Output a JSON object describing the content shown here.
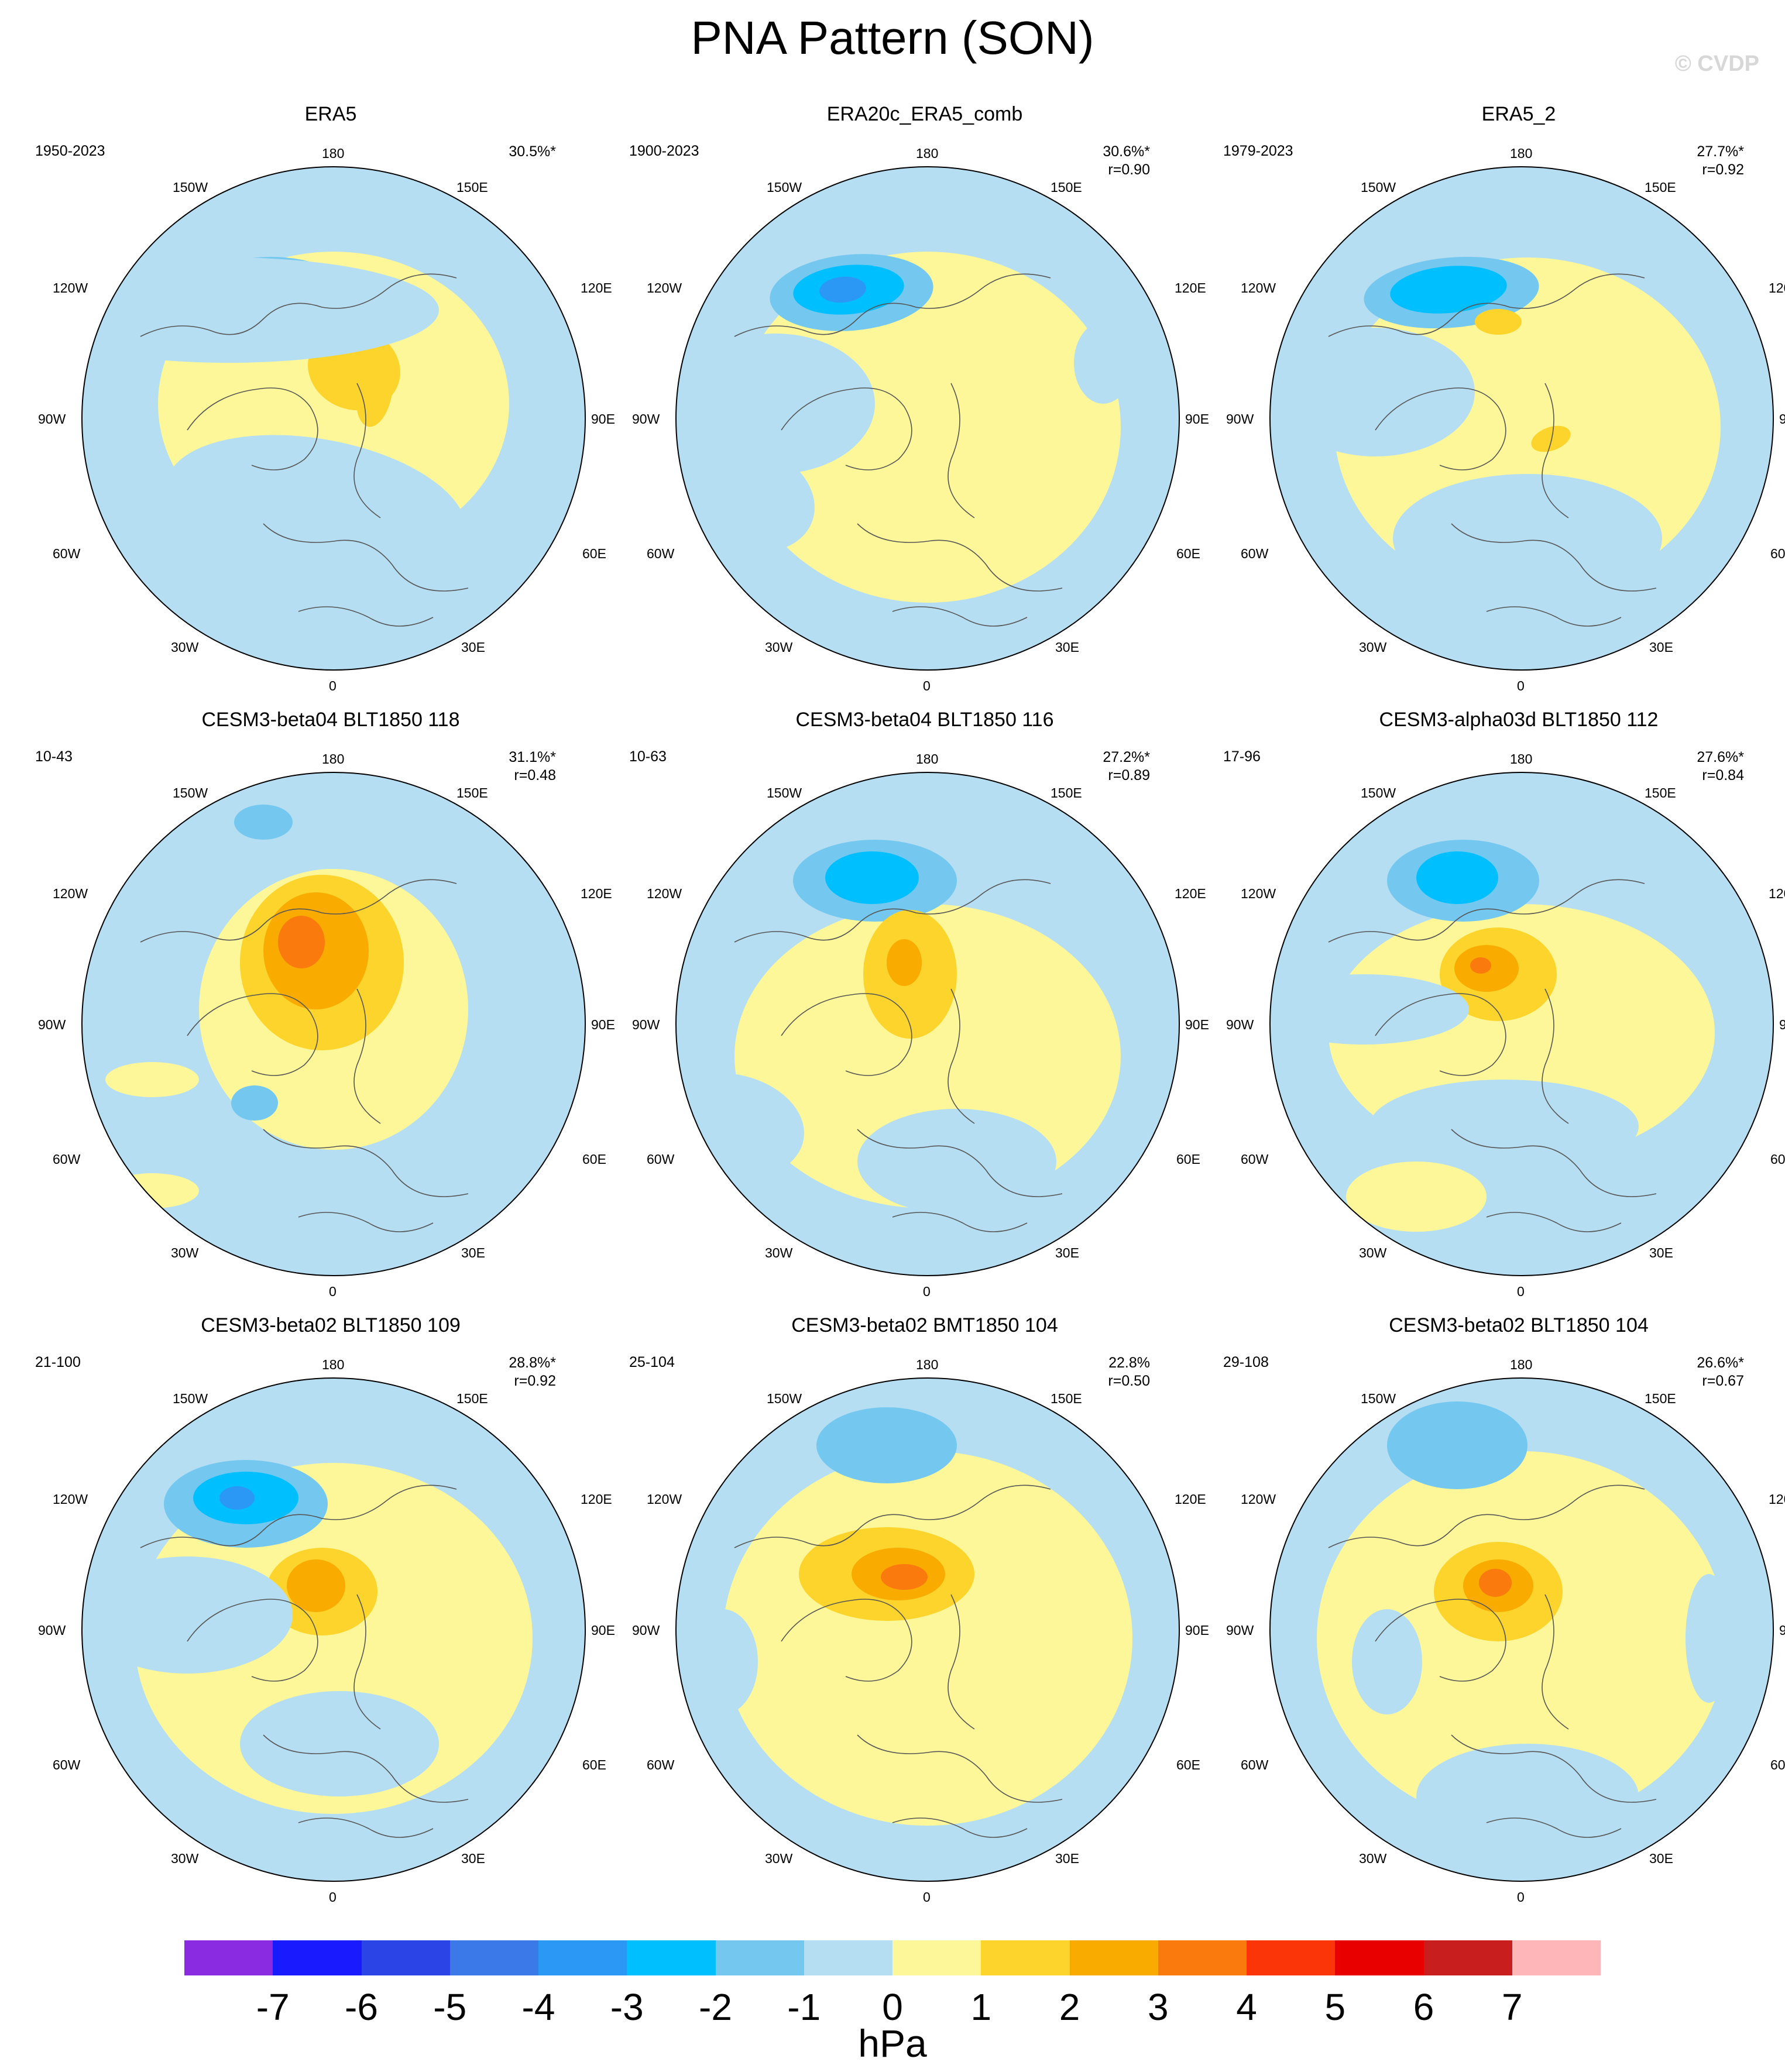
{
  "title": "PNA Pattern (SON)",
  "watermark": "© CVDP",
  "lon_labels": {
    "top": "180",
    "bottom": "0",
    "upper_left": "150W",
    "upper_right": "150E",
    "left_upper": "120W",
    "right_upper": "120E",
    "left": "90W",
    "right": "90E",
    "left_lower": "60W",
    "right_lower": "60E",
    "lower_left": "30W",
    "lower_right": "30E"
  },
  "panels": [
    {
      "title": "ERA5",
      "years": "1950-2023",
      "pct": "30.5%*",
      "corr": ""
    },
    {
      "title": "ERA20c_ERA5_comb",
      "years": "1900-2023",
      "pct": "30.6%*",
      "corr": "r=0.90"
    },
    {
      "title": "ERA5_2",
      "years": "1979-2023",
      "pct": "27.7%*",
      "corr": "r=0.92"
    },
    {
      "title": "CESM3-beta04 BLT1850 118",
      "years": "10-43",
      "pct": "31.1%*",
      "corr": "r=0.48"
    },
    {
      "title": "CESM3-beta04 BLT1850 116",
      "years": "10-63",
      "pct": "27.2%*",
      "corr": "r=0.89"
    },
    {
      "title": "CESM3-alpha03d BLT1850 112",
      "years": "17-96",
      "pct": "27.6%*",
      "corr": "r=0.84"
    },
    {
      "title": "CESM3-beta02 BLT1850 109",
      "years": "21-100",
      "pct": "28.8%*",
      "corr": "r=0.92"
    },
    {
      "title": "CESM3-beta02 BMT1850 104",
      "years": "25-104",
      "pct": "22.8%",
      "corr": "r=0.50"
    },
    {
      "title": "CESM3-beta02 BLT1850 104",
      "years": "29-108",
      "pct": "26.6%*",
      "corr": "r=0.67"
    }
  ],
  "colorbar": {
    "colors": [
      "#8a2be2",
      "#1a1aff",
      "#2a44e6",
      "#3b78e8",
      "#2b98f5",
      "#00bfff",
      "#74c8f0",
      "#b5def2",
      "#fdf79a",
      "#fdd42b",
      "#f9ab00",
      "#fb7a0e",
      "#fb3508",
      "#e80000",
      "#c81e1e",
      "#ffb6b9"
    ],
    "labels": [
      "-7",
      "-6",
      "-5",
      "-4",
      "-3",
      "-2",
      "-1",
      "0",
      "1",
      "2",
      "3",
      "4",
      "5",
      "6",
      "7"
    ],
    "units": "hPa"
  }
}
